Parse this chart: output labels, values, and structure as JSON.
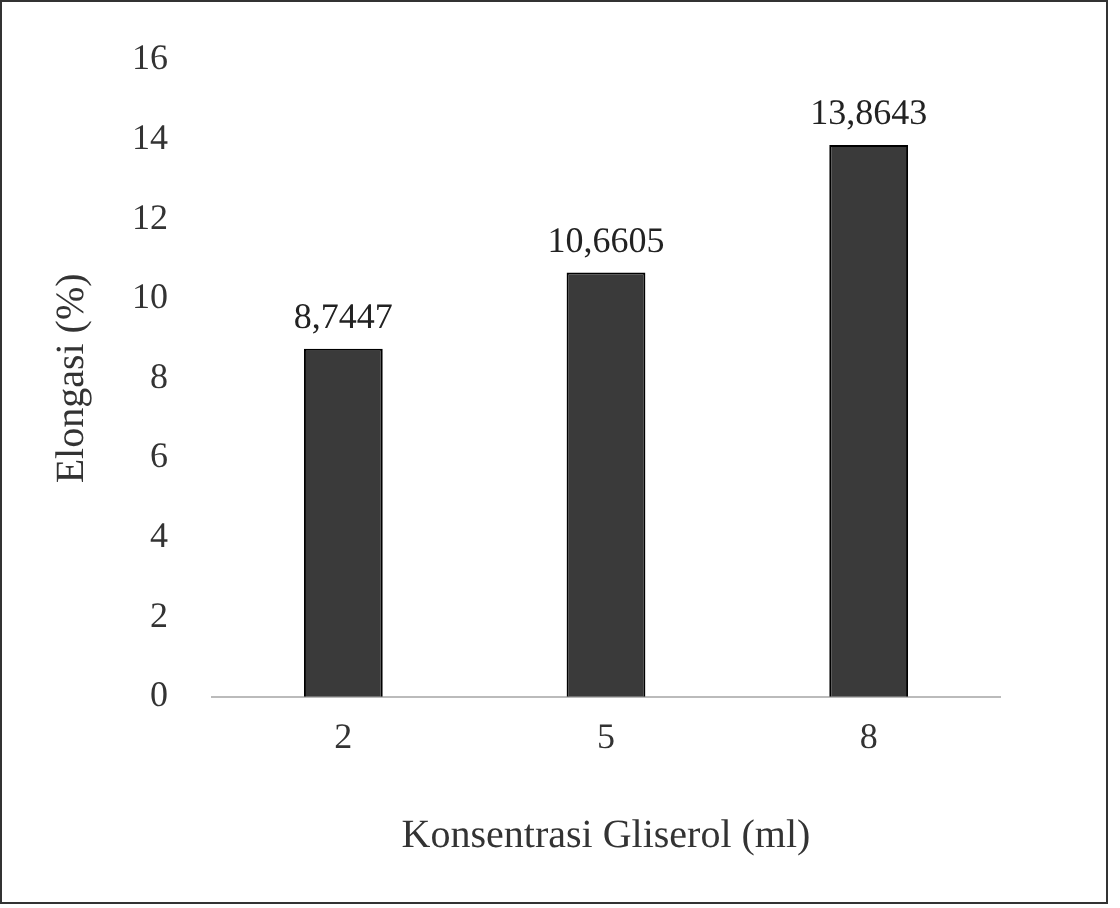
{
  "chart_data": {
    "type": "bar",
    "xlabel": "Konsentrasi Gliserol (ml)",
    "ylabel": "Elongasi (%)",
    "categories": [
      "2",
      "5",
      "8"
    ],
    "values": [
      8.7447,
      10.6605,
      13.8643
    ],
    "value_labels": [
      "8,7447",
      "10,6605",
      "13,8643"
    ],
    "color": "#3a3a3a",
    "ylim": [
      0,
      16
    ],
    "yticks": [
      0,
      2,
      4,
      6,
      8,
      10,
      12,
      14,
      16
    ],
    "grid": false,
    "legend": false
  }
}
